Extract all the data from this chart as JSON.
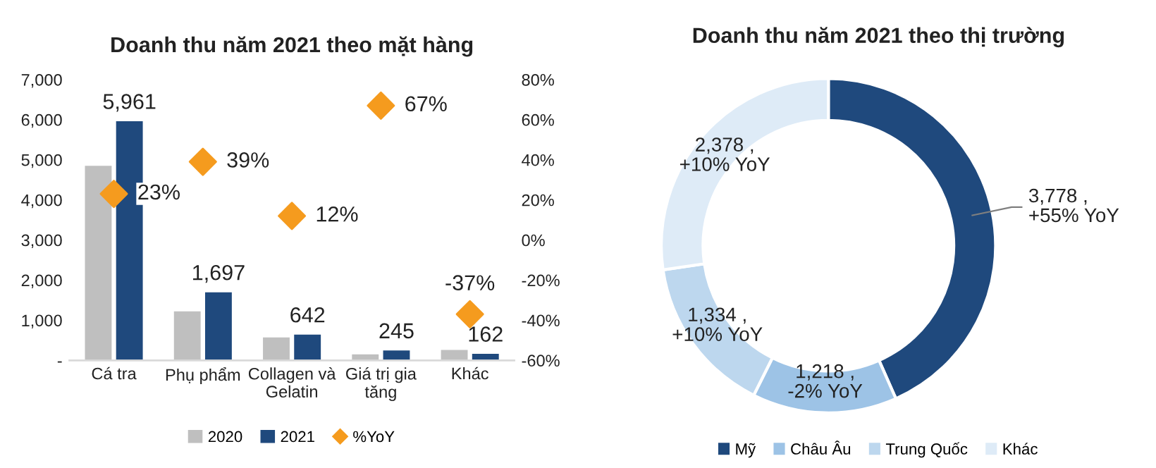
{
  "chart_data": [
    {
      "type": "bar",
      "title": "Doanh thu năm 2021 theo mặt hàng",
      "categories": [
        "Cá tra",
        "Phụ phẩm",
        "Collagen và Gelatin",
        "Giá trị gia tăng",
        "Khác"
      ],
      "series": [
        {
          "name": "2020",
          "color": "#bfbfbf",
          "values": [
            4850,
            1220,
            570,
            150,
            260
          ]
        },
        {
          "name": "2021",
          "color": "#1f497d",
          "values": [
            5961,
            1697,
            642,
            245,
            162
          ],
          "value_labels": [
            "5,961",
            "1,697",
            "642",
            "245",
            "162"
          ]
        },
        {
          "name": "%YoY",
          "type": "scatter",
          "axis": "y2",
          "marker": "diamond",
          "color": "#f59b1e",
          "values": [
            23,
            39,
            12,
            67,
            -37
          ],
          "value_labels": [
            "23%",
            "39%",
            "12%",
            "67%",
            "-37%"
          ]
        }
      ],
      "ylim": [
        0,
        7000
      ],
      "yticks": [
        {
          "value": 0,
          "label": "-"
        },
        {
          "value": 1000,
          "label": "1,000"
        },
        {
          "value": 2000,
          "label": "2,000"
        },
        {
          "value": 3000,
          "label": "3,000"
        },
        {
          "value": 4000,
          "label": "4,000"
        },
        {
          "value": 5000,
          "label": "5,000"
        },
        {
          "value": 6000,
          "label": "6,000"
        },
        {
          "value": 7000,
          "label": "7,000"
        }
      ],
      "y2lim": [
        -60,
        80
      ],
      "y2ticks": [
        {
          "value": -60,
          "label": "-60%"
        },
        {
          "value": -40,
          "label": "-40%"
        },
        {
          "value": -20,
          "label": "-20%"
        },
        {
          "value": 0,
          "label": "0%"
        },
        {
          "value": 20,
          "label": "20%"
        },
        {
          "value": 40,
          "label": "40%"
        },
        {
          "value": 60,
          "label": "60%"
        },
        {
          "value": 80,
          "label": "80%"
        }
      ],
      "legend": "bottom",
      "grid": false
    },
    {
      "type": "donut",
      "title": "Doanh thu năm 2021 theo thị trường",
      "categories": [
        "Mỹ",
        "Châu Âu",
        "Trung Quốc",
        "Khác"
      ],
      "values": [
        3778,
        1218,
        1334,
        2378
      ],
      "colors": [
        "#1f497d",
        "#9dc3e6",
        "#bdd7ee",
        "#deebf7"
      ],
      "value_labels": [
        "3,778 , +55% YoY",
        "1,218 , -2% YoY",
        "1,334 , +10% YoY",
        "2,378 , +10% YoY"
      ],
      "legend": "bottom"
    }
  ]
}
